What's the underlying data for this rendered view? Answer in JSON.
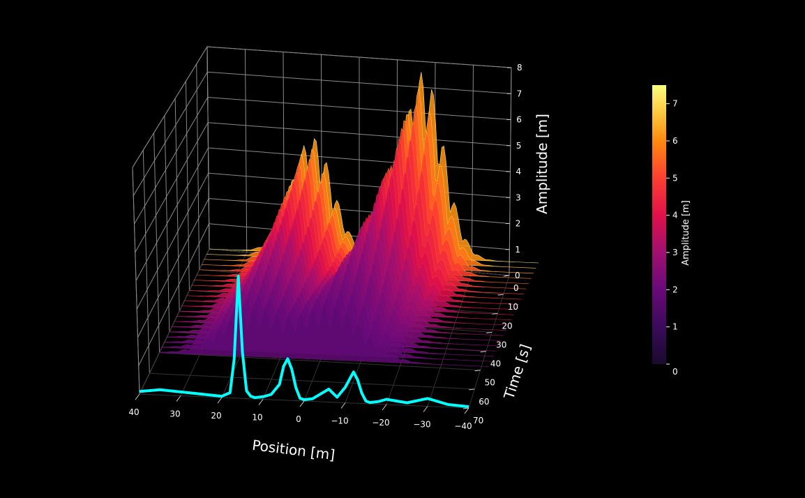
{
  "chart_data": {
    "type": "surface3d",
    "title": "",
    "xlabel": "Position [m]",
    "ylabel": "Time [s]",
    "zlabel": "Amplitude [m]",
    "colorbar_label": "Amplitude [m]",
    "colormap": "inferno-magenta",
    "background": "#000000",
    "xlim": [
      40,
      -40
    ],
    "ylim": [
      0,
      70
    ],
    "zlim": [
      0,
      8
    ],
    "x_ticks": [
      "40",
      "30",
      "20",
      "10",
      "0",
      "−10",
      "−20",
      "−30",
      "−40"
    ],
    "y_ticks": [
      "0",
      "10",
      "20",
      "30",
      "40",
      "50",
      "60",
      "70"
    ],
    "z_ticks": [
      "0",
      "1",
      "2",
      "3",
      "4",
      "5",
      "6",
      "7",
      "8"
    ],
    "colorbar_ticks": [
      "0",
      "1",
      "2",
      "3",
      "4",
      "5",
      "6",
      "7"
    ],
    "colorbar_range": [
      0,
      7.5
    ],
    "surface_peaks": [
      {
        "x": 15,
        "t": 5,
        "amplitude": 4.5
      },
      {
        "x": -12,
        "t": 5,
        "amplitude": 7.2
      }
    ],
    "projection_curve": {
      "color": "#00ffff",
      "x": [
        40,
        35,
        30,
        25,
        20,
        18,
        17,
        16,
        15,
        14,
        13,
        12,
        10,
        8,
        6,
        5,
        4,
        3,
        2,
        1,
        0,
        -2,
        -4,
        -6,
        -8,
        -10,
        -12,
        -13,
        -14,
        -15,
        -16,
        -18,
        -20,
        -25,
        -30,
        -35,
        -40
      ],
      "amplitude": [
        0.1,
        0.2,
        0.15,
        0.1,
        0.05,
        0.2,
        1.5,
        4.7,
        1.8,
        0.3,
        0.1,
        0.05,
        0.1,
        0.2,
        0.6,
        1.3,
        1.6,
        1.2,
        0.5,
        0.1,
        0.05,
        0.1,
        0.3,
        0.5,
        0.2,
        0.6,
        1.2,
        0.9,
        0.4,
        0.1,
        0.05,
        0.1,
        0.2,
        0.1,
        0.3,
        0.1,
        0.05
      ]
    }
  }
}
